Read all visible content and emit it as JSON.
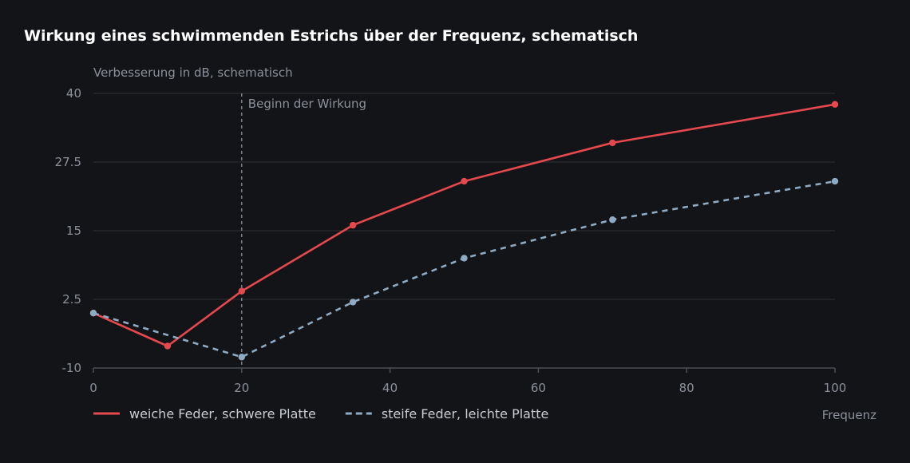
{
  "chart_data": {
    "type": "line",
    "title": "Wirkung eines schwimmenden Estrichs über der Frequenz, schematisch",
    "ylabel": "Verbesserung in dB, schematisch",
    "xlabel": "Frequenz",
    "ylim": [
      -10,
      40
    ],
    "xlim": [
      0,
      100
    ],
    "yticks": [
      -10,
      2.5,
      15,
      27.5,
      40
    ],
    "ytick_labels": [
      "-10",
      "2.5",
      "15",
      "27.5",
      "40"
    ],
    "xticks": [
      0,
      20,
      40,
      60,
      80,
      100
    ],
    "xtick_labels": [
      "0",
      "20",
      "40",
      "60",
      "80",
      "100"
    ],
    "grid": true,
    "legend_position": "bottom-left",
    "annotations": [
      {
        "type": "vline",
        "x": 20,
        "label": "Beginn der Wirkung"
      }
    ],
    "series": [
      {
        "name": "weiche Feder, schwere Platte",
        "color": "#e5484d",
        "dash": false,
        "x": [
          0,
          10,
          20,
          35,
          50,
          70,
          100
        ],
        "y": [
          0,
          -6,
          4,
          16,
          24,
          31,
          38
        ]
      },
      {
        "name": "steife Feder, leichte Platte",
        "color": "#8fabc4",
        "dash": true,
        "x": [
          0,
          20,
          35,
          50,
          70,
          100
        ],
        "y": [
          0,
          -8,
          2,
          10,
          17,
          24
        ]
      }
    ]
  }
}
